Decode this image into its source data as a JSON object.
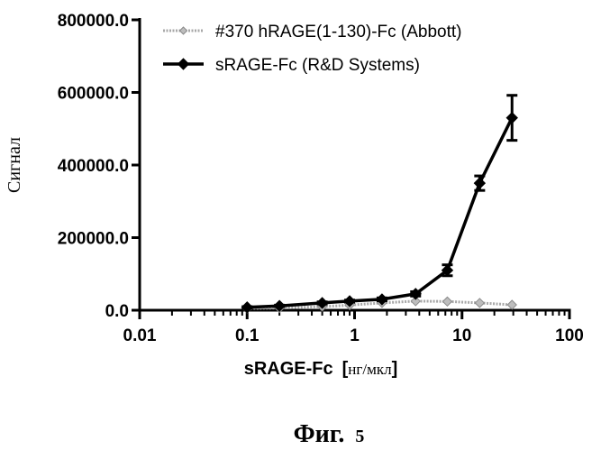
{
  "chart_data": {
    "type": "line",
    "xscale": "log",
    "xlim": [
      0.01,
      100
    ],
    "ylim": [
      0,
      800000
    ],
    "xticks": [
      0.01,
      0.1,
      1,
      10,
      100
    ],
    "xtick_labels": [
      "0.01",
      "0.1",
      "1",
      "10",
      "100"
    ],
    "yticks": [
      0,
      200000,
      400000,
      600000,
      800000
    ],
    "ytick_labels": [
      "0.0",
      "200000.0",
      "400000.0",
      "600000.0",
      "800000.0"
    ],
    "xlabel": "sRAGE-Fc",
    "xlabel_unit": "нг/мкл",
    "ylabel": "Сигнал",
    "grid": false,
    "legend_position": "top-right",
    "series": [
      {
        "name": "#370 hRAGE(1-130)-Fc (Abbott)",
        "color": "#a8a8a8",
        "marker": "diamond",
        "x": [
          0.1,
          0.2,
          0.5,
          0.9,
          1.8,
          3.7,
          7.3,
          14.6,
          29.2
        ],
        "y": [
          5000,
          6000,
          10000,
          14000,
          20000,
          25000,
          24000,
          20000,
          15000
        ]
      },
      {
        "name": "sRAGE-Fc (R&D Systems)",
        "color": "#000000",
        "marker": "diamond",
        "x": [
          0.1,
          0.2,
          0.5,
          0.9,
          1.8,
          3.7,
          7.3,
          14.6,
          29.2
        ],
        "y": [
          8000,
          12000,
          20000,
          25000,
          30000,
          45000,
          110000,
          350000,
          530000
        ],
        "yerr": [
          2000,
          2000,
          3000,
          3000,
          4000,
          6000,
          15000,
          20000,
          62000
        ]
      }
    ]
  },
  "caption": {
    "text": "Фиг.",
    "number": "5"
  }
}
